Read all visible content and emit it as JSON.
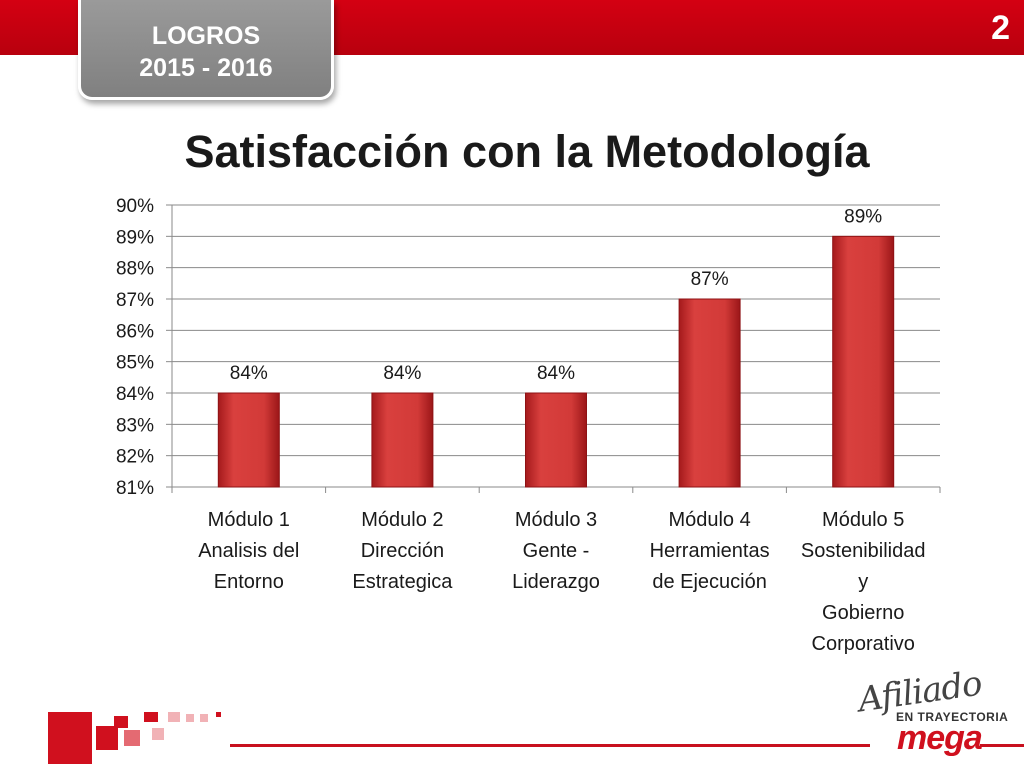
{
  "header": {
    "slide_number": "2",
    "tab_line1": "LOGROS",
    "tab_line2": "2015 - 2016"
  },
  "page_title": "Satisfacción con la Metodología",
  "brand": {
    "script": "Afiliado",
    "tagline": "EN TRAYECTORIA",
    "name": "mega"
  },
  "colors": {
    "accent_red": "#c8101e",
    "bar_fill": "#c52c2c",
    "gray_tab": "#8c8c8c"
  },
  "chart_data": {
    "type": "bar",
    "title": "Satisfacción con la Metodología",
    "categories": [
      [
        "Módulo 1",
        "Analisis del",
        "Entorno"
      ],
      [
        "Módulo 2",
        "Dirección",
        "Estrategica"
      ],
      [
        "Módulo 3",
        "Gente -",
        "Liderazgo"
      ],
      [
        "Módulo 4",
        "Herramientas",
        "de Ejecución"
      ],
      [
        "Módulo 5",
        "Sostenibilidad",
        "y",
        "Gobierno",
        "Corporativo"
      ]
    ],
    "values": [
      84,
      84,
      84,
      87,
      89
    ],
    "data_labels": [
      "84%",
      "84%",
      "84%",
      "87%",
      "89%"
    ],
    "ylim": [
      81,
      90
    ],
    "y_ticks": [
      "81%",
      "82%",
      "83%",
      "84%",
      "85%",
      "86%",
      "87%",
      "88%",
      "89%",
      "90%"
    ],
    "grid": true,
    "legend": "none"
  }
}
